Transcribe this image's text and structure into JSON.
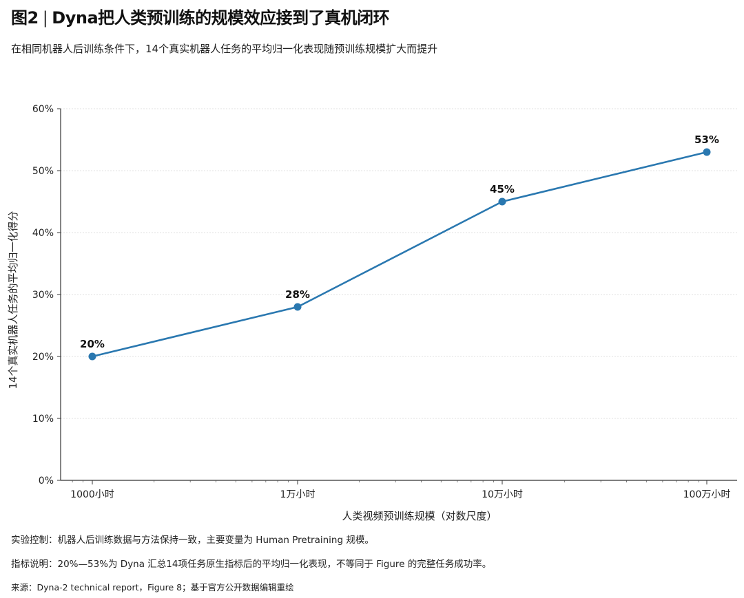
{
  "header": {
    "figure_label": "图2",
    "separator": "|",
    "title": "Dyna把人类预训练的规模效应接到了真机闭环",
    "subtitle": "在相同机器人后训练条件下，14个真实机器人任务的平均归一化表现随预训练规模扩大而提升"
  },
  "chart_data": {
    "type": "line",
    "categories": [
      "1000小时",
      "1万小时",
      "10万小时",
      "100万小时"
    ],
    "x_scale": "log",
    "series": [
      {
        "values": [
          20,
          28,
          45,
          53
        ],
        "color": "#2a78b0"
      }
    ],
    "data_labels": [
      "20%",
      "28%",
      "45%",
      "53%"
    ],
    "xlabel": "人类视频预训练规模（对数尺度）",
    "ylabel": "14个真实机器人任务的平均归一化得分",
    "ylim": [
      0,
      60
    ],
    "yticks": [
      0,
      10,
      20,
      30,
      40,
      50,
      60
    ],
    "ytick_labels": [
      "0%",
      "10%",
      "20%",
      "30%",
      "40%",
      "50%",
      "60%"
    ],
    "grid": "horizontal dotted",
    "legend": "none"
  },
  "footer": {
    "note1": "实验控制：机器人后训练数据与方法保持一致，主要变量为 Human Pretraining 规模。",
    "note2": "指标说明：20%—53%为 Dyna 汇总14项任务原生指标后的平均归一化表现，不等同于 Figure 的完整任务成功率。",
    "source": "来源：Dyna-2 technical report，Figure 8；基于官方公开数据编辑重绘"
  }
}
